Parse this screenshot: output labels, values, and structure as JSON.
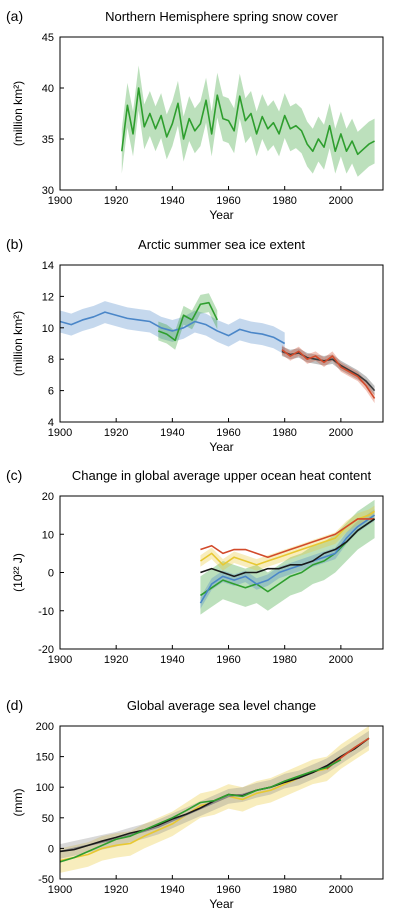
{
  "chart_data": [
    {
      "type": "line",
      "panel_label": "(a)",
      "title": "Northern Hemisphere spring snow cover",
      "xlabel": "Year",
      "ylabel": "(million km²)",
      "xlim": [
        1900,
        2015
      ],
      "ylim": [
        30,
        45
      ],
      "xticks": [
        1900,
        1920,
        1940,
        1960,
        1980,
        2000
      ],
      "yticks": [
        30,
        35,
        40,
        45
      ],
      "series": [
        {
          "color": "#2e9e2e",
          "band": true,
          "band_width": 2.2,
          "x": [
            1922,
            1924,
            1926,
            1928,
            1930,
            1932,
            1934,
            1936,
            1938,
            1940,
            1942,
            1944,
            1946,
            1948,
            1950,
            1952,
            1954,
            1956,
            1958,
            1960,
            1962,
            1964,
            1966,
            1968,
            1970,
            1972,
            1974,
            1976,
            1978,
            1980,
            1982,
            1984,
            1986,
            1988,
            1990,
            1992,
            1994,
            1996,
            1998,
            2000,
            2002,
            2004,
            2006,
            2008,
            2010,
            2012
          ],
          "y": [
            33.8,
            38.3,
            35.5,
            40.0,
            36.2,
            37.5,
            36.0,
            37.3,
            35.2,
            36.5,
            38.5,
            35.0,
            37.0,
            35.8,
            36.5,
            38.8,
            35.5,
            39.3,
            37.0,
            36.8,
            35.8,
            39.2,
            36.8,
            37.5,
            35.5,
            37.2,
            36.0,
            36.6,
            35.5,
            37.3,
            36.0,
            36.3,
            35.8,
            34.5,
            33.8,
            35.0,
            34.2,
            36.3,
            33.8,
            35.5,
            33.8,
            34.8,
            33.5,
            34.0,
            34.5,
            34.8
          ]
        }
      ]
    },
    {
      "type": "line",
      "panel_label": "(b)",
      "title": "Arctic summer sea ice extent",
      "xlabel": "Year",
      "ylabel": "(million km²)",
      "xlim": [
        1900,
        2015
      ],
      "ylim": [
        4,
        14
      ],
      "xticks": [
        1900,
        1920,
        1940,
        1960,
        1980,
        2000
      ],
      "yticks": [
        4,
        6,
        8,
        10,
        12,
        14
      ],
      "series": [
        {
          "color": "#4a86c8",
          "band": true,
          "band_width": 0.7,
          "x": [
            1900,
            1904,
            1908,
            1912,
            1916,
            1920,
            1924,
            1928,
            1932,
            1936,
            1940,
            1944,
            1948,
            1952,
            1956,
            1960,
            1964,
            1968,
            1972,
            1976,
            1980
          ],
          "y": [
            10.4,
            10.2,
            10.5,
            10.7,
            11.0,
            10.8,
            10.6,
            10.5,
            10.4,
            10.0,
            9.8,
            10.0,
            10.4,
            10.2,
            9.8,
            9.5,
            9.9,
            9.7,
            9.6,
            9.4,
            9.0
          ]
        },
        {
          "color": "#2e9e2e",
          "band": true,
          "band_width": 0.6,
          "x": [
            1935,
            1938,
            1941,
            1944,
            1947,
            1950,
            1953,
            1956
          ],
          "y": [
            9.8,
            9.6,
            9.2,
            10.8,
            10.5,
            11.5,
            11.6,
            10.5
          ]
        },
        {
          "color": "#3a3a3a",
          "band": true,
          "band_width": 0.3,
          "x": [
            1979,
            1982,
            1985,
            1988,
            1991,
            1994,
            1997,
            2000,
            2003,
            2006,
            2009,
            2012
          ],
          "y": [
            8.5,
            8.3,
            8.4,
            8.1,
            8.0,
            7.9,
            8.0,
            7.6,
            7.3,
            7.0,
            6.6,
            6.0
          ]
        },
        {
          "color": "#d24a2a",
          "band": true,
          "band_width": 0.3,
          "x": [
            1979,
            1982,
            1985,
            1988,
            1991,
            1994,
            1997,
            2000,
            2003,
            2006,
            2009,
            2012
          ],
          "y": [
            8.6,
            8.2,
            8.5,
            8.0,
            8.2,
            7.8,
            8.2,
            7.5,
            7.2,
            6.9,
            6.3,
            5.5
          ]
        }
      ]
    },
    {
      "type": "line",
      "panel_label": "(c)",
      "title": "Change in global average upper ocean heat content",
      "xlabel": "",
      "ylabel": "(10²² J)",
      "xlim": [
        1900,
        2015
      ],
      "ylim": [
        -20,
        20
      ],
      "xticks": [
        1900,
        1920,
        1940,
        1960,
        1980,
        2000
      ],
      "yticks": [
        -20,
        -10,
        0,
        10,
        20
      ],
      "series": [
        {
          "color": "#2e9e2e",
          "band": true,
          "band_width": 5,
          "x": [
            1950,
            1954,
            1958,
            1962,
            1966,
            1970,
            1974,
            1978,
            1982,
            1986,
            1990,
            1994,
            1998,
            2002,
            2006,
            2010,
            2012
          ],
          "y": [
            -6,
            -4,
            -2,
            -3,
            -4,
            -3,
            -5,
            -3,
            -1,
            0,
            2,
            3,
            5,
            8,
            11,
            13,
            14
          ]
        },
        {
          "color": "#4a86c8",
          "band": true,
          "band_width": 1.5,
          "x": [
            1950,
            1954,
            1958,
            1962,
            1966,
            1970,
            1974,
            1978,
            1982,
            1986,
            1990,
            1994,
            1998,
            2002,
            2006,
            2010,
            2012
          ],
          "y": [
            -8,
            -3,
            -1,
            -2,
            -1,
            -3,
            -2,
            0,
            1,
            2,
            3,
            4,
            5,
            9,
            12,
            14,
            15
          ]
        },
        {
          "color": "#e8c832",
          "band": true,
          "band_width": 1.5,
          "x": [
            1950,
            1954,
            1958,
            1962,
            1966,
            1970,
            1974,
            1978,
            1982,
            1986,
            1990,
            1994,
            1998,
            2002,
            2006,
            2010,
            2012
          ],
          "y": [
            3,
            5,
            2,
            4,
            3,
            2,
            3,
            4,
            5,
            6,
            7,
            8,
            9,
            12,
            14,
            15,
            16
          ]
        },
        {
          "color": "#d24a2a",
          "band": false,
          "x": [
            1950,
            1954,
            1958,
            1962,
            1966,
            1970,
            1974,
            1978,
            1982,
            1986,
            1990,
            1994,
            1998,
            2002,
            2006,
            2010,
            2012
          ],
          "y": [
            6,
            7,
            5,
            6,
            6,
            5,
            4,
            5,
            6,
            7,
            8,
            9,
            10,
            12,
            14,
            14,
            14
          ]
        },
        {
          "color": "#1a1a1a",
          "band": false,
          "x": [
            1950,
            1954,
            1958,
            1962,
            1966,
            1970,
            1974,
            1978,
            1982,
            1986,
            1990,
            1994,
            1998,
            2002,
            2006,
            2010,
            2012
          ],
          "y": [
            0,
            1,
            0,
            -1,
            0,
            0,
            1,
            1,
            2,
            2,
            3,
            5,
            6,
            8,
            11,
            13,
            14
          ]
        }
      ]
    },
    {
      "type": "line",
      "panel_label": "(d)",
      "title": "Global average sea level change",
      "xlabel": "Year",
      "ylabel": "(mm)",
      "xlim": [
        1900,
        2015
      ],
      "ylim": [
        -50,
        200
      ],
      "xticks": [
        1900,
        1920,
        1940,
        1960,
        1980,
        2000
      ],
      "yticks": [
        -50,
        0,
        50,
        100,
        150,
        200
      ],
      "series": [
        {
          "color": "#e8c832",
          "band": true,
          "band_width": 20,
          "x": [
            1900,
            1905,
            1910,
            1915,
            1920,
            1925,
            1930,
            1935,
            1940,
            1945,
            1950,
            1955,
            1960,
            1965,
            1970,
            1975,
            1980,
            1985,
            1990,
            1995,
            2000,
            2005,
            2010
          ],
          "y": [
            -20,
            -15,
            -10,
            0,
            5,
            8,
            20,
            30,
            40,
            55,
            70,
            75,
            85,
            80,
            90,
            95,
            105,
            115,
            125,
            130,
            150,
            165,
            180
          ]
        },
        {
          "color": "#8a8a8a",
          "band": true,
          "band_width": 12,
          "x": [
            1900,
            1905,
            1910,
            1915,
            1920,
            1925,
            1930,
            1935,
            1940,
            1945,
            1950,
            1955,
            1960,
            1965,
            1970,
            1975,
            1980,
            1985,
            1990,
            1995,
            2000,
            2005,
            2010
          ],
          "y": [
            -5,
            0,
            5,
            10,
            15,
            22,
            28,
            35,
            45,
            55,
            65,
            75,
            85,
            88,
            95,
            100,
            110,
            115,
            125,
            135,
            150,
            165,
            180
          ]
        },
        {
          "color": "#1a1a1a",
          "band": false,
          "x": [
            1900,
            1905,
            1910,
            1915,
            1920,
            1925,
            1930,
            1935,
            1940,
            1945,
            1950,
            1955,
            1960,
            1965,
            1970,
            1975,
            1980,
            1985,
            1990,
            1995,
            2000,
            2005,
            2010
          ],
          "y": [
            -5,
            -2,
            5,
            12,
            18,
            25,
            30,
            38,
            48,
            56,
            66,
            78,
            88,
            86,
            95,
            100,
            108,
            115,
            124,
            135,
            150,
            163,
            180
          ]
        },
        {
          "color": "#d24a2a",
          "band": false,
          "x": [
            1995,
            2000,
            2005,
            2010
          ],
          "y": [
            130,
            148,
            165,
            180
          ]
        },
        {
          "color": "#2e9e2e",
          "band": false,
          "x": [
            1900,
            1905,
            1910,
            1915,
            1920,
            1925,
            1930,
            1935,
            1940,
            1945,
            1950,
            1955,
            1960,
            1965,
            1970,
            1975,
            1980,
            1985,
            1990,
            1995,
            2000
          ],
          "y": [
            -22,
            -15,
            -5,
            5,
            15,
            20,
            30,
            40,
            50,
            62,
            75,
            78,
            88,
            85,
            95,
            100,
            110,
            118,
            126,
            132,
            145
          ]
        }
      ]
    }
  ]
}
